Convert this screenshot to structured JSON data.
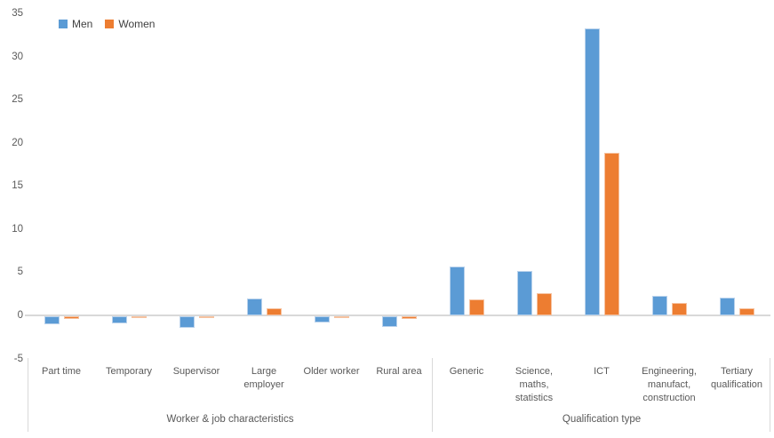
{
  "legend": {
    "items": [
      {
        "label": "Men",
        "color": "#5B9BD5"
      },
      {
        "label": "Women",
        "color": "#ED7D31"
      }
    ]
  },
  "chart_data": {
    "type": "bar",
    "title": "",
    "xlabel": "",
    "ylabel": "",
    "ylim": [
      -5,
      35
    ],
    "ytick_step": 5,
    "gridlines": false,
    "legend_position": "top-left",
    "axis_line_color": "#D9D9D9",
    "text_color": "#595959",
    "category_groups": [
      {
        "label": "Worker & job characteristics",
        "categories": [
          {
            "name": "Part time",
            "lines": [
              "Part time"
            ]
          },
          {
            "name": "Temporary",
            "lines": [
              "Temporary"
            ]
          },
          {
            "name": "Supervisor",
            "lines": [
              "Supervisor"
            ]
          },
          {
            "name": "Large employer",
            "lines": [
              "Large",
              "employer"
            ]
          },
          {
            "name": "Older worker",
            "lines": [
              "Older worker"
            ]
          },
          {
            "name": "Rural area",
            "lines": [
              "Rural area"
            ]
          }
        ]
      },
      {
        "label": "Qualification type",
        "categories": [
          {
            "name": "Generic",
            "lines": [
              "Generic"
            ]
          },
          {
            "name": "Science, maths, statistics",
            "lines": [
              "Science,",
              "maths,",
              "statistics"
            ]
          },
          {
            "name": "ICT",
            "lines": [
              "ICT"
            ]
          },
          {
            "name": "Engineering, manufact, construction",
            "lines": [
              "Engineering,",
              "manufact,",
              "construction"
            ]
          },
          {
            "name": "Tertiary qualification",
            "lines": [
              "Tertiary",
              "qualification"
            ]
          }
        ]
      }
    ],
    "series": [
      {
        "name": "Men",
        "color": "#5B9BD5",
        "values": [
          -0.9,
          -0.8,
          -1.3,
          2.0,
          -0.7,
          -1.2,
          5.7,
          5.1,
          33.2,
          2.3,
          2.1
        ]
      },
      {
        "name": "Women",
        "color": "#ED7D31",
        "values": [
          -0.3,
          -0.2,
          -0.1,
          0.8,
          -0.2,
          -0.3,
          1.8,
          2.6,
          18.8,
          1.4,
          0.8
        ]
      }
    ]
  }
}
